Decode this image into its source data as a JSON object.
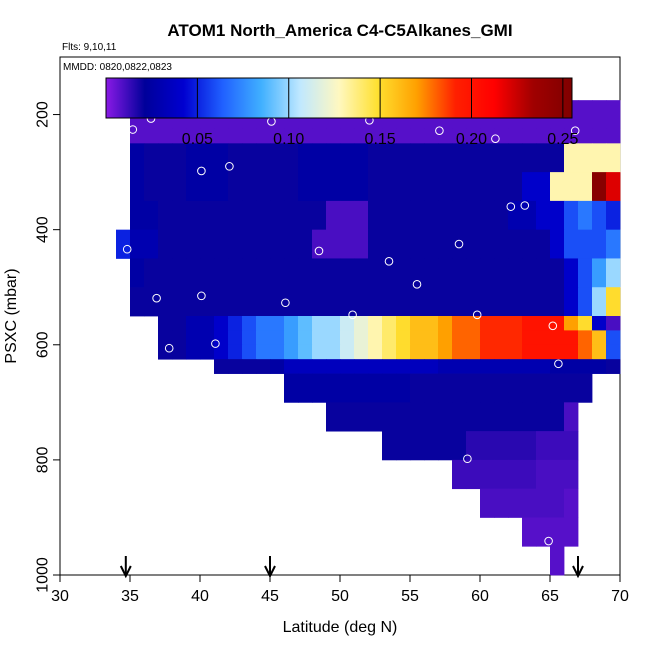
{
  "chart_data": {
    "type": "heatmap",
    "title": "ATOM1 North_America C4-C5Alkanes_GMI",
    "annotations": [
      "Flts: 9,10,11",
      "MMDD: 0820,0822,0823"
    ],
    "xlabel": "Latitude (deg N)",
    "ylabel": "PSXC (mbar)",
    "xlim": [
      30,
      70
    ],
    "ylim": [
      1000,
      100
    ],
    "y_reversed": true,
    "x_ticks": [
      30,
      35,
      40,
      45,
      50,
      55,
      60,
      65,
      70
    ],
    "y_ticks": [
      200,
      400,
      600,
      800,
      1000
    ],
    "colorbar": {
      "range": [
        0,
        0.255
      ],
      "ticks": [
        0.05,
        0.1,
        0.15,
        0.2,
        0.25
      ],
      "tick_labels": [
        "0.05",
        "0.10",
        "0.15",
        "0.20",
        "0.25"
      ],
      "colors": [
        "#8a1ae6",
        "#00009a",
        "#0000d0",
        "#2060ff",
        "#40b0ff",
        "#c0e8ff",
        "#fff8c0",
        "#ffe030",
        "#ffa000",
        "#ff2000",
        "#ff0000",
        "#a00000",
        "#800000"
      ]
    },
    "grid": false,
    "cell_size": {
      "lat": 1,
      "pres": 50
    },
    "rows": [
      {
        "p_top": 175,
        "p_bot": 225,
        "lat0": 35,
        "vals": [
          0.008,
          0.008,
          0.008,
          0.008,
          0.008,
          0.008,
          0.008,
          0.008,
          0.008,
          0.008,
          0.008,
          0.008,
          0.008,
          0.008,
          0.008,
          0.008,
          0.008,
          0.008,
          0.008,
          0.008,
          0.008,
          0.008,
          0.008,
          0.008,
          0.008,
          0.008,
          0.008,
          0.008,
          0.008,
          0.008,
          0.008,
          0.008,
          0.008,
          0.008,
          0.008
        ]
      },
      {
        "p_top": 225,
        "p_bot": 250,
        "lat0": 35,
        "vals": [
          0.008,
          0.008,
          0.008,
          0.008,
          0.008,
          0.008,
          0.008,
          0.008,
          0.008,
          0.008,
          0.008,
          0.008,
          0.008,
          0.008,
          0.008,
          0.008,
          0.008,
          0.008,
          0.008,
          0.008,
          0.008,
          0.008,
          0.008,
          0.008,
          0.008,
          0.008,
          0.008,
          0.008,
          0.008,
          0.008,
          0.008,
          0.008,
          0.008,
          0.008,
          0.008
        ]
      },
      {
        "p_top": 250,
        "p_bot": 300,
        "lat0": 35,
        "vals": [
          0.025,
          0.02,
          0.02,
          0.02,
          0.025,
          0.025,
          0.025,
          0.02,
          0.02,
          0.02,
          0.02,
          0.02,
          0.025,
          0.025,
          0.025,
          0.025,
          0.025,
          0.02,
          0.02,
          0.02,
          0.02,
          0.02,
          0.02,
          0.02,
          0.02,
          0.02,
          0.02,
          0.02,
          0.02,
          0.02,
          0.02,
          0.13,
          0.13,
          0.13,
          0.13,
          0.13,
          0.13,
          0.12,
          0.07,
          0.01
        ]
      },
      {
        "p_top": 300,
        "p_bot": 350,
        "lat0": 35,
        "vals": [
          0.025,
          0.02,
          0.02,
          0.02,
          0.025,
          0.025,
          0.025,
          0.02,
          0.02,
          0.02,
          0.02,
          0.02,
          0.025,
          0.025,
          0.025,
          0.025,
          0.025,
          0.02,
          0.02,
          0.02,
          0.02,
          0.02,
          0.02,
          0.02,
          0.02,
          0.02,
          0.02,
          0.02,
          0.04,
          0.04,
          0.13,
          0.13,
          0.13,
          0.25,
          0.22,
          0.24,
          0.19,
          0.1,
          0.06,
          0.01
        ]
      },
      {
        "p_top": 350,
        "p_bot": 400,
        "lat0": 35,
        "vals": [
          0.025,
          0.025,
          0.02,
          0.02,
          0.02,
          0.02,
          0.02,
          0.02,
          0.02,
          0.02,
          0.02,
          0.02,
          0.02,
          0.02,
          0.01,
          0.01,
          0.01,
          0.02,
          0.02,
          0.02,
          0.02,
          0.02,
          0.02,
          0.02,
          0.02,
          0.02,
          0.02,
          0.03,
          0.03,
          0.04,
          0.04,
          0.06,
          0.07,
          0.06,
          0.05,
          0.1,
          0.11,
          0.09,
          0.06,
          0.01
        ]
      },
      {
        "p_top": 400,
        "p_bot": 450,
        "lat0": 34,
        "vals": [
          0.05,
          0.03,
          0.03,
          0.02,
          0.02,
          0.02,
          0.02,
          0.02,
          0.02,
          0.02,
          0.02,
          0.02,
          0.02,
          0.02,
          0.01,
          0.01,
          0.01,
          0.01,
          0.02,
          0.02,
          0.02,
          0.02,
          0.02,
          0.02,
          0.02,
          0.02,
          0.02,
          0.02,
          0.02,
          0.02,
          0.02,
          0.04,
          0.06,
          0.06,
          0.06,
          0.07,
          0.1,
          0.11,
          0.08,
          0.03
        ]
      },
      {
        "p_top": 450,
        "p_bot": 500,
        "lat0": 35,
        "vals": [
          0.025,
          0.02,
          0.02,
          0.02,
          0.02,
          0.02,
          0.02,
          0.02,
          0.02,
          0.02,
          0.02,
          0.02,
          0.02,
          0.02,
          0.02,
          0.02,
          0.02,
          0.02,
          0.02,
          0.02,
          0.02,
          0.02,
          0.02,
          0.02,
          0.02,
          0.02,
          0.02,
          0.02,
          0.02,
          0.02,
          0.02,
          0.04,
          0.06,
          0.08,
          0.1,
          0.13,
          0.1,
          0.04
        ]
      },
      {
        "p_top": 500,
        "p_bot": 550,
        "lat0": 35,
        "vals": [
          0.02,
          0.02,
          0.02,
          0.02,
          0.02,
          0.02,
          0.02,
          0.02,
          0.02,
          0.02,
          0.02,
          0.02,
          0.02,
          0.02,
          0.02,
          0.02,
          0.02,
          0.02,
          0.02,
          0.02,
          0.02,
          0.02,
          0.02,
          0.02,
          0.02,
          0.02,
          0.02,
          0.02,
          0.02,
          0.02,
          0.02,
          0.04,
          0.06,
          0.1,
          0.15,
          0.16,
          0.05,
          0.015
        ]
      },
      {
        "p_top": 550,
        "p_bot": 575,
        "lat0": 37,
        "vals": [
          0.02,
          0.02,
          0.03,
          0.03,
          0.04,
          0.05,
          0.06,
          0.07,
          0.07,
          0.08,
          0.09,
          0.1,
          0.1,
          0.11,
          0.12,
          0.13,
          0.14,
          0.15,
          0.16,
          0.16,
          0.17,
          0.18,
          0.18,
          0.19,
          0.19,
          0.19,
          0.2,
          0.2,
          0.2,
          0.17,
          0.15,
          0.04,
          0.01
        ]
      },
      {
        "p_top": 575,
        "p_bot": 600,
        "lat0": 37,
        "vals": [
          0.02,
          0.02,
          0.03,
          0.03,
          0.04,
          0.05,
          0.06,
          0.07,
          0.07,
          0.08,
          0.09,
          0.1,
          0.1,
          0.11,
          0.12,
          0.13,
          0.14,
          0.15,
          0.16,
          0.16,
          0.17,
          0.18,
          0.18,
          0.19,
          0.19,
          0.19,
          0.2,
          0.2,
          0.2,
          0.2,
          0.18,
          0.16,
          0.06,
          0.01
        ]
      },
      {
        "p_top": 600,
        "p_bot": 625,
        "lat0": 37,
        "vals": [
          0.02,
          0.02,
          0.03,
          0.03,
          0.04,
          0.05,
          0.06,
          0.07,
          0.07,
          0.08,
          0.09,
          0.1,
          0.1,
          0.11,
          0.12,
          0.13,
          0.14,
          0.15,
          0.16,
          0.16,
          0.17,
          0.18,
          0.18,
          0.19,
          0.19,
          0.19,
          0.2,
          0.2,
          0.2,
          0.2,
          0.18,
          0.16,
          0.06,
          0.01
        ]
      },
      {
        "p_top": 625,
        "p_bot": 650,
        "lat0": 41,
        "vals": [
          0.02,
          0.02,
          0.02,
          0.02,
          0.025,
          0.035,
          0.035,
          0.035,
          0.035,
          0.035,
          0.035,
          0.035,
          0.035,
          0.035,
          0.035,
          0.035,
          0.03,
          0.03,
          0.03,
          0.03,
          0.03,
          0.03,
          0.03,
          0.03,
          0.025,
          0.025,
          0.025,
          0.025,
          0.02,
          0.02
        ]
      },
      {
        "p_top": 650,
        "p_bot": 700,
        "lat0": 46,
        "vals": [
          0.025,
          0.025,
          0.025,
          0.025,
          0.025,
          0.025,
          0.025,
          0.025,
          0.025,
          0.02,
          0.02,
          0.02,
          0.02,
          0.02,
          0.02,
          0.02,
          0.02,
          0.02,
          0.02,
          0.02,
          0.02,
          0.02
        ]
      },
      {
        "p_top": 700,
        "p_bot": 750,
        "lat0": 49,
        "vals": [
          0.02,
          0.02,
          0.02,
          0.02,
          0.02,
          0.02,
          0.02,
          0.02,
          0.02,
          0.02,
          0.02,
          0.02,
          0.02,
          0.02,
          0.02,
          0.02,
          0.02,
          0.01
        ]
      },
      {
        "p_top": 750,
        "p_bot": 800,
        "lat0": 53,
        "vals": [
          0.02,
          0.02,
          0.02,
          0.02,
          0.02,
          0.02,
          0.015,
          0.015,
          0.015,
          0.015,
          0.015,
          0.012,
          0.012,
          0.012
        ]
      },
      {
        "p_top": 800,
        "p_bot": 850,
        "lat0": 58,
        "vals": [
          0.012,
          0.012,
          0.012,
          0.012,
          0.012,
          0.012,
          0.01,
          0.01,
          0.01
        ]
      },
      {
        "p_top": 850,
        "p_bot": 900,
        "lat0": 60,
        "vals": [
          0.01,
          0.01,
          0.01,
          0.01,
          0.01,
          0.01,
          0.008
        ]
      },
      {
        "p_top": 900,
        "p_bot": 950,
        "lat0": 63,
        "vals": [
          0.008,
          0.008,
          0.008,
          0.008
        ]
      },
      {
        "p_top": 950,
        "p_bot": 1000,
        "lat0": 65,
        "vals": [
          0.008
        ]
      }
    ],
    "observations": [
      [
        35.3,
        190
      ],
      [
        36.1,
        185
      ],
      [
        36.5,
        195
      ],
      [
        36.5,
        207
      ],
      [
        35.2,
        226
      ],
      [
        45.1,
        212
      ],
      [
        52.1,
        210
      ],
      [
        57.1,
        228
      ],
      [
        61.1,
        242
      ],
      [
        40.1,
        298
      ],
      [
        42.1,
        290
      ],
      [
        66.8,
        228
      ],
      [
        62.2,
        360
      ],
      [
        63.2,
        358
      ],
      [
        34.8,
        434
      ],
      [
        58.5,
        425
      ],
      [
        48.5,
        437
      ],
      [
        53.5,
        455
      ],
      [
        55.5,
        495
      ],
      [
        36.9,
        519
      ],
      [
        40.1,
        515
      ],
      [
        46.1,
        527
      ],
      [
        50.9,
        548
      ],
      [
        59.8,
        548
      ],
      [
        65.2,
        567
      ],
      [
        37.8,
        606
      ],
      [
        41.1,
        598
      ],
      [
        65.6,
        633
      ],
      [
        59.1,
        798
      ],
      [
        64.9,
        941
      ]
    ],
    "arrows_lat": [
      34.7,
      45,
      67
    ]
  }
}
